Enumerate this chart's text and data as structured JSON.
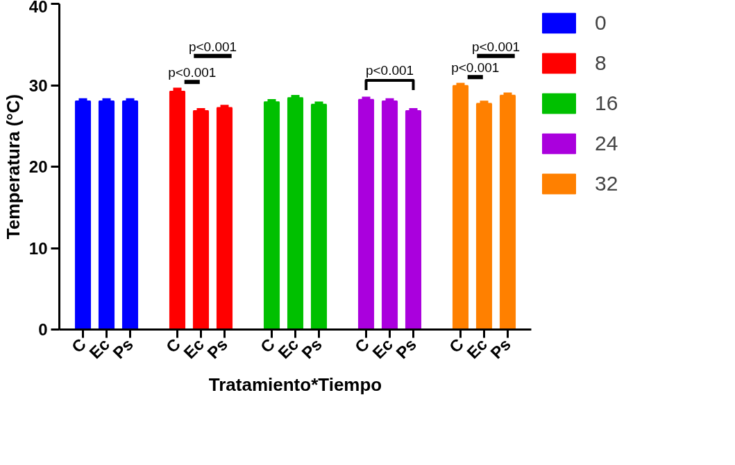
{
  "chart_data": {
    "type": "bar",
    "xlabel": "Tratamiento*Tiempo",
    "ylabel": "Temperatura (°C)",
    "categories": [
      "C",
      "Ec",
      "Ps",
      "C",
      "Ec",
      "Ps",
      "C",
      "Ec",
      "Ps",
      "C",
      "Ec",
      "Ps",
      "C",
      "Ec",
      "Ps"
    ],
    "series": [
      {
        "name": "0",
        "color": "#0000ff",
        "values": [
          28.0,
          28.0,
          28.0,
          null,
          null,
          null,
          null,
          null,
          null,
          null,
          null,
          null,
          null,
          null,
          null
        ],
        "errors": [
          0.4,
          0.4,
          0.4,
          null,
          null,
          null,
          null,
          null,
          null,
          null,
          null,
          null,
          null,
          null,
          null
        ]
      },
      {
        "name": "8",
        "color": "#ff0000",
        "values": [
          null,
          null,
          null,
          29.2,
          26.8,
          27.2,
          null,
          null,
          null,
          null,
          null,
          null,
          null,
          null,
          null
        ],
        "errors": [
          null,
          null,
          null,
          0.5,
          0.4,
          0.4,
          null,
          null,
          null,
          null,
          null,
          null,
          null,
          null,
          null
        ]
      },
      {
        "name": "16",
        "color": "#00c000",
        "values": [
          null,
          null,
          null,
          null,
          null,
          null,
          27.9,
          28.4,
          27.6,
          null,
          null,
          null,
          null,
          null,
          null
        ],
        "errors": [
          null,
          null,
          null,
          null,
          null,
          null,
          0.4,
          0.4,
          0.4,
          null,
          null,
          null,
          null,
          null,
          null
        ]
      },
      {
        "name": "24",
        "color": "#aa00dd",
        "values": [
          null,
          null,
          null,
          null,
          null,
          null,
          null,
          null,
          null,
          28.2,
          28.0,
          26.8,
          null,
          null,
          null
        ],
        "errors": [
          null,
          null,
          null,
          null,
          null,
          null,
          null,
          null,
          null,
          0.4,
          0.4,
          0.4,
          null,
          null,
          null
        ]
      },
      {
        "name": "32",
        "color": "#ff8000",
        "values": [
          null,
          null,
          null,
          null,
          null,
          null,
          null,
          null,
          null,
          null,
          null,
          null,
          29.9,
          27.7,
          28.7
        ],
        "errors": [
          null,
          null,
          null,
          null,
          null,
          null,
          null,
          null,
          null,
          null,
          null,
          null,
          0.4,
          0.4,
          0.4
        ]
      }
    ],
    "ylim": [
      0,
      40
    ],
    "yticks": [
      0,
      10,
      20,
      30,
      40
    ],
    "grid": false,
    "legend": "right",
    "annotations": [
      "p<0.001",
      "p<0.001",
      "p<0.001",
      "p<0.001",
      "p<0.001"
    ]
  }
}
